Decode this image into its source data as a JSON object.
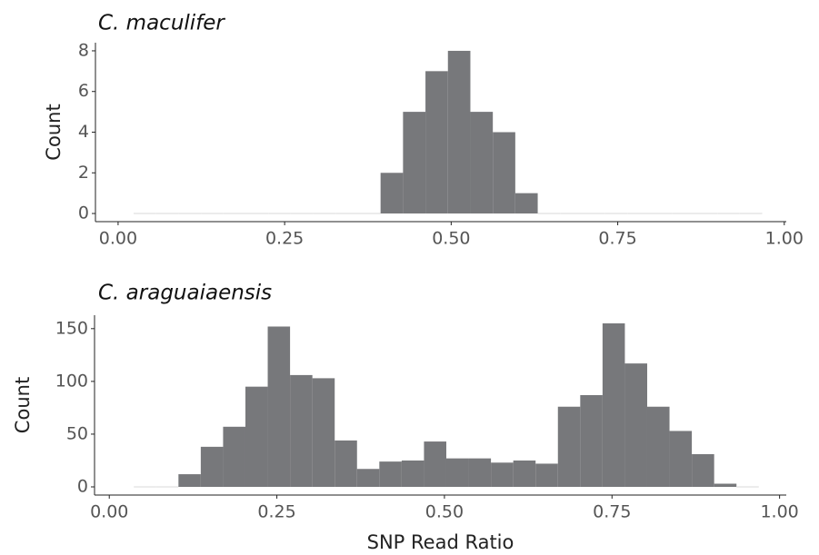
{
  "chart_data": [
    {
      "type": "histogram",
      "title": "C.  maculifer",
      "ylabel": "Count",
      "color": "#77787b",
      "bins": [
        0.0233,
        0.057,
        0.0907,
        0.1244,
        0.1581,
        0.1918,
        0.2255,
        0.2592,
        0.2929,
        0.3266,
        0.3603,
        0.394,
        0.4277,
        0.4614,
        0.4951,
        0.5288,
        0.5625,
        0.5962,
        0.6299,
        0.6636,
        0.6973,
        0.731,
        0.7647,
        0.7984,
        0.8321,
        0.8658,
        0.8995,
        0.9332,
        0.9669
      ],
      "counts": [
        0,
        0,
        0,
        0,
        0,
        0,
        0,
        0,
        0,
        0,
        0,
        2,
        5,
        7,
        8,
        5,
        4,
        1,
        0,
        0,
        0,
        0,
        0,
        0,
        0,
        0,
        0,
        0
      ],
      "xlim": [
        -0.034,
        1.003
      ],
      "ylim": [
        -0.4,
        8.4
      ],
      "xticks": [
        {
          "value": 0,
          "label": "0.00"
        },
        {
          "value": 0.25,
          "label": "0.25"
        },
        {
          "value": 0.5,
          "label": "0.50"
        },
        {
          "value": 0.75,
          "label": "0.75"
        },
        {
          "value": 1,
          "label": "1.00"
        }
      ],
      "yticks": [
        0,
        2,
        4,
        6,
        8
      ]
    },
    {
      "type": "histogram",
      "title": "C.  araguaiaensis",
      "ylabel": "Count",
      "xlabel": "SNP Read Ratio",
      "color": "#77787b",
      "bins": [
        0.0366,
        0.0699,
        0.1032,
        0.1365,
        0.1698,
        0.2031,
        0.2364,
        0.2697,
        0.303,
        0.3363,
        0.3696,
        0.4029,
        0.4362,
        0.4695,
        0.5028,
        0.5361,
        0.5694,
        0.6027,
        0.636,
        0.6693,
        0.7026,
        0.7359,
        0.7692,
        0.8025,
        0.8358,
        0.8691,
        0.9024,
        0.9357,
        0.969
      ],
      "counts": [
        0,
        0,
        12,
        38,
        57,
        95,
        152,
        106,
        103,
        44,
        17,
        24,
        25,
        43,
        27,
        27,
        23,
        25,
        22,
        76,
        87,
        155,
        117,
        76,
        53,
        31,
        3,
        0
      ],
      "xlim": [
        -0.022,
        1.01
      ],
      "ylim": [
        -7.75,
        162.75
      ],
      "xticks": [
        {
          "value": 0,
          "label": "0.00"
        },
        {
          "value": 0.25,
          "label": "0.25"
        },
        {
          "value": 0.5,
          "label": "0.50"
        },
        {
          "value": 0.75,
          "label": "0.75"
        },
        {
          "value": 1,
          "label": "1.00"
        }
      ],
      "yticks": [
        0,
        50,
        100,
        150
      ]
    }
  ]
}
